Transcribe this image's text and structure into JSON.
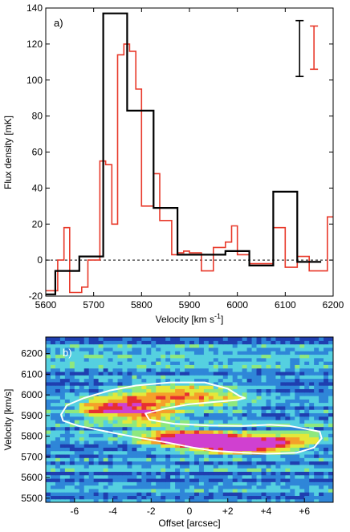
{
  "chart_data": [
    {
      "type": "line",
      "panel_label": "a)",
      "xlabel_main": "Velocity [km s",
      "xlabel_sup": "-1",
      "xlabel_tail": "]",
      "ylabel": "Flux density [mK]",
      "xlim": [
        5600,
        6200
      ],
      "ylim": [
        -20,
        140
      ],
      "x_ticks": [
        5600,
        5700,
        5800,
        5900,
        6000,
        6100,
        6200
      ],
      "y_ticks": [
        -20,
        0,
        20,
        40,
        60,
        80,
        100,
        120,
        140
      ],
      "grid": false,
      "zero_line": {
        "y": 0,
        "style": "dashed",
        "color": "#000000"
      },
      "series": [
        {
          "color": "#000000",
          "step_edges": [
            5600,
            5620,
            5645,
            5670,
            5720,
            5770,
            5825,
            5875,
            5925,
            5975,
            6025,
            6075,
            6125,
            6175
          ],
          "values": [
            -19,
            -6,
            -6,
            2,
            137,
            83,
            29,
            3,
            3,
            5,
            -3,
            38,
            -1
          ]
        },
        {
          "color": "#e8392a",
          "step_edges": [
            5600,
            5613,
            5625,
            5638,
            5650,
            5663,
            5675,
            5688,
            5700,
            5713,
            5725,
            5738,
            5750,
            5763,
            5775,
            5788,
            5800,
            5813,
            5825,
            5838,
            5850,
            5863,
            5875,
            5888,
            5900,
            5913,
            5925,
            5938,
            5950,
            5963,
            5975,
            5988,
            6000,
            6013,
            6025,
            6038,
            6050,
            6063,
            6075,
            6088,
            6100,
            6113,
            6125,
            6138,
            6150,
            6163,
            6175,
            6188,
            6200
          ],
          "values": [
            -17,
            -17,
            0,
            18,
            -18,
            -18,
            -15,
            0,
            0,
            55,
            53,
            20,
            114,
            120,
            116,
            95,
            30,
            30,
            48,
            22,
            22,
            3,
            4,
            5,
            4,
            4,
            -6,
            -6,
            7,
            7,
            10,
            19,
            3,
            3,
            -2,
            -2,
            -2,
            -2,
            18,
            18,
            -4,
            -4,
            2,
            2,
            -6,
            -6,
            -6,
            24
          ]
        }
      ],
      "error_bars": [
        {
          "x": 6130,
          "low": 102,
          "high": 133,
          "color": "#000000"
        },
        {
          "x": 6160,
          "low": 106,
          "high": 130,
          "color": "#e8392a"
        }
      ]
    },
    {
      "type": "heatmap",
      "panel_label": "b)",
      "xlabel": "Offset [arcsec]",
      "ylabel": "Velocity [km/s]",
      "xlim": [
        -7.5,
        7.5
      ],
      "ylim": [
        5480,
        6280
      ],
      "x_ticks": [
        -6,
        -4,
        -2,
        0,
        2,
        4,
        6
      ],
      "x_tick_labels": [
        "-6",
        "-4",
        "-2",
        "0",
        "+2",
        "+4",
        "+6"
      ],
      "y_ticks": [
        5500,
        5600,
        5700,
        5800,
        5900,
        6000,
        6100,
        6200
      ],
      "colormap": [
        "#0a1a4a",
        "#1f3fb0",
        "#2f86d8",
        "#55d0e0",
        "#8ee87f",
        "#e4e83a",
        "#f5a02a",
        "#e83030",
        "#d040d0"
      ],
      "background_color": "#2570c8",
      "blobs": [
        {
          "x": 0.8,
          "v": 5780,
          "sx": 1.2,
          "sv": 22,
          "amp": 1.0
        },
        {
          "x": 2.2,
          "v": 5760,
          "sx": 1.3,
          "sv": 25,
          "amp": 0.8
        },
        {
          "x": 3.8,
          "v": 5760,
          "sx": 1.4,
          "sv": 25,
          "amp": 0.55
        },
        {
          "x": -0.5,
          "v": 5790,
          "sx": 1.5,
          "sv": 30,
          "amp": 0.55
        },
        {
          "x": -3.2,
          "v": 5940,
          "sx": 1.2,
          "sv": 35,
          "amp": 0.55
        },
        {
          "x": -4.8,
          "v": 5930,
          "sx": 0.8,
          "sv": 30,
          "amp": 0.4
        },
        {
          "x": -2.0,
          "v": 5900,
          "sx": 1.0,
          "sv": 30,
          "amp": 0.35
        },
        {
          "x": -1.5,
          "v": 6010,
          "sx": 1.6,
          "sv": 40,
          "amp": 0.35
        },
        {
          "x": 1.0,
          "v": 6000,
          "sx": 1.5,
          "sv": 40,
          "amp": 0.3
        },
        {
          "x": 5.5,
          "v": 5790,
          "sx": 1.0,
          "sv": 30,
          "amp": 0.3
        }
      ],
      "contour": [
        [
          -6.7,
          5905
        ],
        [
          -6.4,
          5950
        ],
        [
          -5.5,
          5985
        ],
        [
          -4.2,
          6020
        ],
        [
          -2.8,
          6045
        ],
        [
          -1.0,
          6060
        ],
        [
          0.8,
          6060
        ],
        [
          2.0,
          6030
        ],
        [
          2.6,
          5995
        ],
        [
          2.9,
          5985
        ],
        [
          2.5,
          5975
        ],
        [
          1.2,
          5965
        ],
        [
          0.0,
          5955
        ],
        [
          -1.2,
          5935
        ],
        [
          -2.3,
          5910
        ],
        [
          -2.1,
          5880
        ],
        [
          -0.8,
          5860
        ],
        [
          1.0,
          5852
        ],
        [
          2.8,
          5850
        ],
        [
          4.2,
          5855
        ],
        [
          5.2,
          5850
        ],
        [
          5.9,
          5838
        ],
        [
          6.8,
          5822
        ],
        [
          6.9,
          5790
        ],
        [
          6.5,
          5745
        ],
        [
          5.6,
          5720
        ],
        [
          4.0,
          5715
        ],
        [
          2.5,
          5722
        ],
        [
          1.2,
          5730
        ],
        [
          0.2,
          5745
        ],
        [
          -1.2,
          5770
        ],
        [
          -2.5,
          5790
        ],
        [
          -4.2,
          5820
        ],
        [
          -5.8,
          5850
        ],
        [
          -6.6,
          5875
        ]
      ],
      "contour_color": "#ffffff"
    }
  ]
}
